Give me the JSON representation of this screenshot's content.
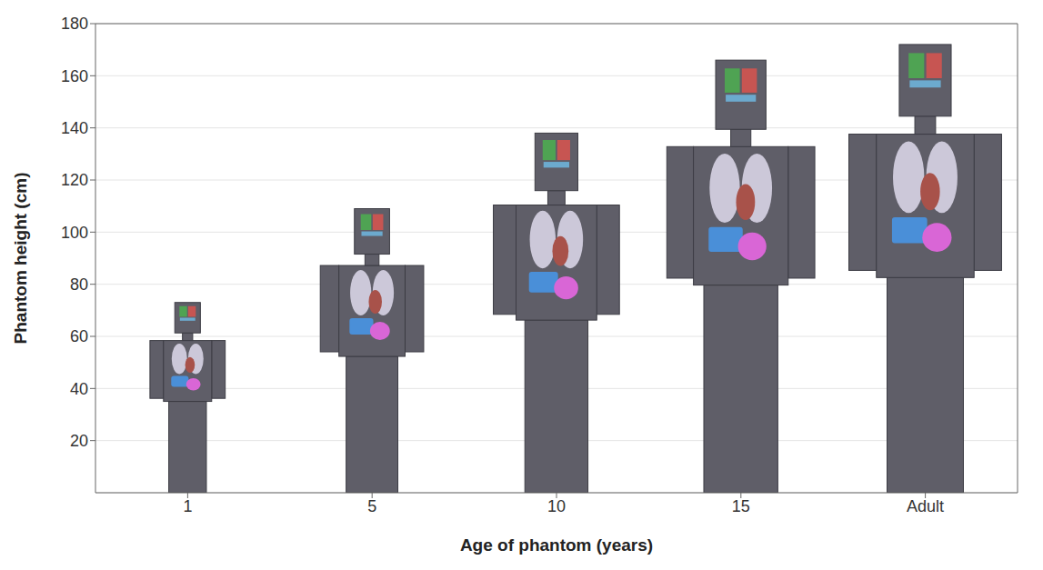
{
  "chart_data": {
    "type": "bar",
    "x_label": "Age of phantom (years)",
    "y_label": "Phantom height (cm)",
    "categories": [
      "1",
      "5",
      "10",
      "15",
      "Adult"
    ],
    "values": [
      73,
      109,
      138,
      166,
      172
    ],
    "color": "#5f5e68",
    "ylim": [
      0,
      180
    ],
    "yticks": [
      20,
      40,
      60,
      80,
      100,
      120,
      140,
      160,
      180
    ],
    "grid": true
  }
}
